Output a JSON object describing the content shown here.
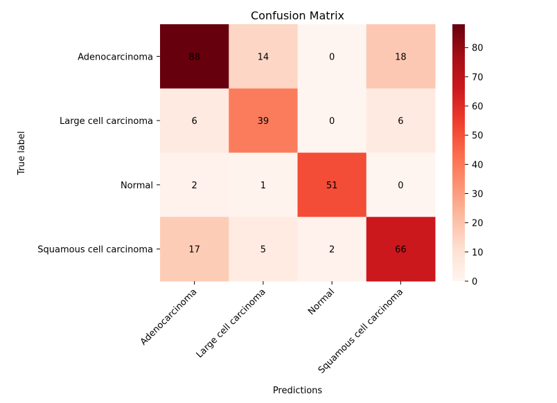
{
  "chart_data": {
    "type": "heatmap",
    "title": "Confusion Matrix",
    "xlabel": "Predictions",
    "ylabel": "True label",
    "x_categories": [
      "Adenocarcinoma",
      "Large cell carcinoma",
      "Normal",
      "Squamous cell carcinoma"
    ],
    "y_categories": [
      "Adenocarcinoma",
      "Large cell carcinoma",
      "Normal",
      "Squamous cell carcinoma"
    ],
    "values": [
      [
        88,
        14,
        0,
        18
      ],
      [
        6,
        39,
        0,
        6
      ],
      [
        2,
        1,
        51,
        0
      ],
      [
        17,
        5,
        2,
        66
      ]
    ],
    "colormap": "Reds",
    "vmin": 0,
    "vmax": 88,
    "colorbar_ticks": [
      0,
      10,
      20,
      30,
      40,
      50,
      60,
      70,
      80
    ],
    "colors": {
      "low": "#fff5f0",
      "high": "#67000d",
      "light_text": "#ffffff",
      "dark_text": "#262626"
    }
  }
}
